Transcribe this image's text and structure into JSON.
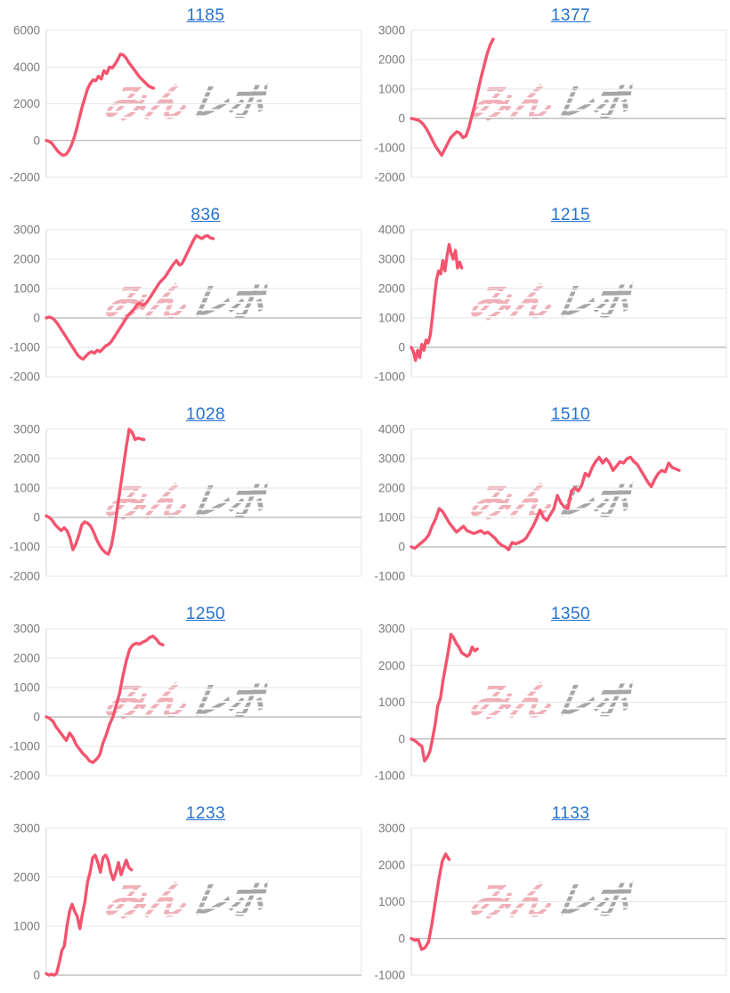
{
  "page": {
    "background": "#ffffff"
  },
  "style": {
    "line_color": "#f4536e",
    "title_color": "#2471cf",
    "grid_color": "#e4e4e4",
    "zero_line_color": "#a2a2a2",
    "axis_line_color": "#d6d6d6",
    "tick_label_color": "#7a7a7a",
    "watermark_pink": "#f0b0b8",
    "watermark_gray": "#a6a6a6"
  },
  "watermark": {
    "text_pink": "みん",
    "text_gray": "レポ"
  },
  "chart_data": [
    {
      "type": "line",
      "title": "1185",
      "ylim": [
        -2000,
        6000
      ],
      "yticks": [
        6000,
        4000,
        2000,
        0,
        -2000
      ],
      "x_end": 0.34,
      "grid": true,
      "legend": false,
      "values": [
        0,
        -50,
        -150,
        -350,
        -550,
        -700,
        -800,
        -780,
        -600,
        -300,
        100,
        600,
        1200,
        1800,
        2300,
        2800,
        3100,
        3300,
        3250,
        3500,
        3350,
        3800,
        3650,
        4000,
        3950,
        4150,
        4400,
        4700,
        4650,
        4500,
        4250,
        4050,
        3850,
        3650,
        3450,
        3300,
        3150,
        3000,
        2900,
        2850
      ]
    },
    {
      "type": "line",
      "title": "1377",
      "ylim": [
        -2000,
        3000
      ],
      "yticks": [
        3000,
        2000,
        1000,
        0,
        -1000,
        -2000
      ],
      "x_end": 0.26,
      "grid": true,
      "legend": false,
      "values": [
        0,
        -20,
        -50,
        -100,
        -200,
        -350,
        -550,
        -750,
        -950,
        -1100,
        -1250,
        -1050,
        -850,
        -650,
        -550,
        -450,
        -500,
        -650,
        -600,
        -300,
        100,
        500,
        950,
        1400,
        1800,
        2200,
        2500,
        2700
      ]
    },
    {
      "type": "line",
      "title": "836",
      "ylim": [
        -2000,
        3000
      ],
      "yticks": [
        3000,
        2000,
        1000,
        0,
        -1000,
        -2000
      ],
      "x_end": 0.53,
      "grid": true,
      "legend": false,
      "values": [
        0,
        30,
        0,
        -80,
        -200,
        -350,
        -500,
        -650,
        -800,
        -950,
        -1100,
        -1250,
        -1350,
        -1400,
        -1300,
        -1200,
        -1150,
        -1200,
        -1100,
        -1150,
        -1050,
        -950,
        -900,
        -800,
        -650,
        -500,
        -350,
        -200,
        -50,
        100,
        200,
        300,
        450,
        500,
        430,
        480,
        600,
        750,
        900,
        1050,
        1200,
        1300,
        1400,
        1550,
        1700,
        1850,
        1950,
        1800,
        1850,
        2050,
        2250,
        2450,
        2650,
        2800,
        2750,
        2700,
        2780,
        2800,
        2720,
        2700
      ]
    },
    {
      "type": "line",
      "title": "1215",
      "ylim": [
        -1000,
        4000
      ],
      "yticks": [
        4000,
        3000,
        2000,
        1000,
        0,
        -1000
      ],
      "x_end": 0.16,
      "grid": true,
      "legend": false,
      "values": [
        0,
        -150,
        -450,
        -100,
        -350,
        100,
        -100,
        250,
        150,
        400,
        1000,
        1700,
        2300,
        2600,
        2500,
        2950,
        2600,
        3100,
        3500,
        3200,
        3000,
        3300,
        2700,
        2900,
        2700
      ]
    },
    {
      "type": "line",
      "title": "1028",
      "ylim": [
        -2000,
        3000
      ],
      "yticks": [
        3000,
        2000,
        1000,
        0,
        -1000,
        -2000
      ],
      "x_end": 0.31,
      "grid": true,
      "legend": false,
      "values": [
        50,
        0,
        -100,
        -250,
        -350,
        -450,
        -350,
        -450,
        -700,
        -1100,
        -900,
        -600,
        -250,
        -150,
        -200,
        -300,
        -500,
        -750,
        -950,
        -1100,
        -1200,
        -1250,
        -950,
        -400,
        300,
        1000,
        1700,
        2400,
        3000,
        2900,
        2650,
        2700,
        2670,
        2650
      ]
    },
    {
      "type": "line",
      "title": "1510",
      "ylim": [
        -1000,
        4000
      ],
      "yticks": [
        4000,
        3000,
        2000,
        1000,
        0,
        -1000
      ],
      "x_end": 0.85,
      "grid": true,
      "legend": false,
      "values": [
        0,
        -50,
        50,
        150,
        250,
        400,
        700,
        950,
        1300,
        1200,
        1000,
        800,
        650,
        500,
        600,
        700,
        550,
        500,
        450,
        500,
        550,
        450,
        500,
        400,
        300,
        150,
        50,
        0,
        -100,
        150,
        100,
        150,
        200,
        300,
        500,
        700,
        950,
        1250,
        1000,
        900,
        1100,
        1300,
        1750,
        1500,
        1350,
        1300,
        1900,
        2000,
        1900,
        2100,
        2500,
        2400,
        2700,
        2900,
        3050,
        2850,
        3000,
        2850,
        2600,
        2750,
        2900,
        2850,
        3000,
        3050,
        2900,
        2800,
        2600,
        2400,
        2200,
        2050,
        2300,
        2500,
        2600,
        2550,
        2850,
        2700,
        2650,
        2600
      ]
    },
    {
      "type": "line",
      "title": "1250",
      "ylim": [
        -2000,
        3000
      ],
      "yticks": [
        3000,
        2000,
        1000,
        0,
        -1000,
        -2000
      ],
      "x_end": 0.37,
      "grid": true,
      "legend": false,
      "values": [
        0,
        -50,
        -150,
        -350,
        -500,
        -650,
        -800,
        -550,
        -700,
        -950,
        -1100,
        -1250,
        -1350,
        -1500,
        -1550,
        -1450,
        -1300,
        -900,
        -600,
        -250,
        0,
        400,
        800,
        1400,
        1900,
        2300,
        2450,
        2500,
        2480,
        2550,
        2600,
        2700,
        2750,
        2650,
        2500,
        2450
      ]
    },
    {
      "type": "line",
      "title": "1350",
      "ylim": [
        -1000,
        3000
      ],
      "yticks": [
        3000,
        2000,
        1000,
        0,
        -1000
      ],
      "x_end": 0.21,
      "grid": true,
      "legend": false,
      "values": [
        0,
        -30,
        -80,
        -150,
        -200,
        -600,
        -500,
        -350,
        0,
        400,
        900,
        1100,
        1600,
        2000,
        2400,
        2850,
        2750,
        2600,
        2500,
        2350,
        2300,
        2250,
        2300,
        2500,
        2400,
        2450
      ]
    },
    {
      "type": "line",
      "title": "1233",
      "ylim": [
        0,
        3000
      ],
      "yticks": [
        3000,
        2000,
        1000,
        0
      ],
      "x_end": 0.27,
      "grid": true,
      "legend": false,
      "values": [
        30,
        0,
        20,
        0,
        40,
        250,
        500,
        600,
        1000,
        1300,
        1450,
        1300,
        1200,
        950,
        1250,
        1500,
        1900,
        2100,
        2400,
        2450,
        2300,
        2100,
        2400,
        2450,
        2350,
        2100,
        1950,
        2100,
        2300,
        2050,
        2200,
        2350,
        2200,
        2150
      ]
    },
    {
      "type": "line",
      "title": "1133",
      "ylim": [
        -1000,
        3000
      ],
      "yticks": [
        3000,
        2000,
        1000,
        0,
        -1000
      ],
      "x_end": 0.12,
      "grid": true,
      "legend": false,
      "values": [
        0,
        -50,
        -30,
        -300,
        -250,
        -100,
        400,
        1000,
        1600,
        2100,
        2300,
        2150
      ]
    }
  ]
}
